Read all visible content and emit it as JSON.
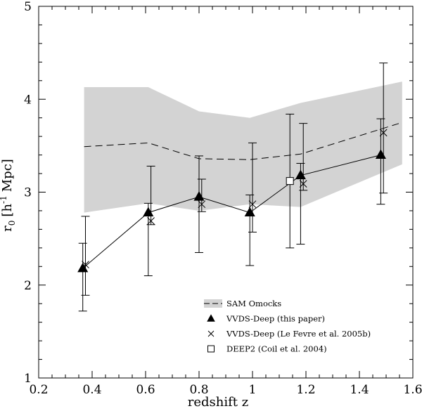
{
  "chart_data": {
    "type": "line",
    "xlabel": "redshift z",
    "ylabel": "r",
    "ylabel_sub": "0",
    "ylabel_bracket_open": "[h",
    "ylabel_sup": "-1",
    "ylabel_unit": "Mpc]",
    "xlim": [
      0.2,
      1.6
    ],
    "ylim": [
      1,
      5
    ],
    "x_ticks": [
      0.2,
      0.4,
      0.6,
      0.8,
      1.0,
      1.2,
      1.4,
      1.6
    ],
    "x_tick_labels": [
      "0.2",
      "0.4",
      "0.6",
      "0.8",
      "1",
      "1.2",
      "1.4",
      "1.6"
    ],
    "y_ticks": [
      1,
      2,
      3,
      4,
      5
    ],
    "y_tick_labels": [
      "1",
      "2",
      "3",
      "4",
      "5"
    ],
    "x_minor_step": 0.05,
    "y_minor_step": 0.2,
    "band": {
      "name": "SAM Omocks range",
      "color": "#d3d3d3",
      "x": [
        0.37,
        0.61,
        0.8,
        0.99,
        1.18,
        1.56
      ],
      "upper": [
        4.13,
        4.13,
        3.87,
        3.8,
        3.96,
        4.19
      ],
      "lower": [
        2.78,
        2.88,
        2.8,
        2.87,
        2.84,
        3.3
      ]
    },
    "series": [
      {
        "name": "SAM Omocks",
        "style": "dashed",
        "x": [
          0.37,
          0.61,
          0.8,
          0.99,
          1.18,
          1.56
        ],
        "y": [
          3.49,
          3.53,
          3.36,
          3.35,
          3.41,
          3.75
        ]
      },
      {
        "name": "VVDS-Deep (this paper)",
        "marker": "filled-triangle",
        "connected": true,
        "x": [
          0.365,
          0.61,
          0.8,
          0.99,
          1.18,
          1.48
        ],
        "y": [
          2.18,
          2.78,
          2.95,
          2.78,
          3.18,
          3.4
        ],
        "err_low": [
          1.72,
          2.1,
          2.35,
          2.21,
          2.44,
          2.87
        ],
        "err_high": [
          2.45,
          2.88,
          3.39,
          2.97,
          3.31,
          3.79
        ]
      },
      {
        "name": "VVDS-Deep (Le Fevre et al. 2005b)",
        "marker": "cross",
        "x": [
          0.375,
          0.62,
          0.81,
          1.0,
          1.19,
          1.49
        ],
        "y": [
          2.22,
          2.69,
          2.87,
          2.87,
          3.09,
          3.64
        ],
        "err_low": [
          1.89,
          2.65,
          2.79,
          2.57,
          3.02,
          2.99
        ],
        "err_high": [
          2.74,
          3.28,
          3.14,
          3.53,
          3.74,
          4.39
        ]
      },
      {
        "name": "DEEP2 (Coil et al. 2004)",
        "marker": "open-square",
        "x": [
          1.14
        ],
        "y": [
          3.12
        ],
        "err_low": [
          2.4
        ],
        "err_high": [
          3.84
        ]
      }
    ],
    "legend": [
      {
        "marker": "band-dash",
        "label": "SAM Omocks"
      },
      {
        "marker": "filled-triangle",
        "label": "VVDS-Deep (this paper)"
      },
      {
        "marker": "cross",
        "label": "VVDS-Deep (Le Fevre et al. 2005b)"
      },
      {
        "marker": "open-square",
        "label": "DEEP2 (Coil et al. 2004)"
      }
    ],
    "legend_position": "bottom-right"
  }
}
